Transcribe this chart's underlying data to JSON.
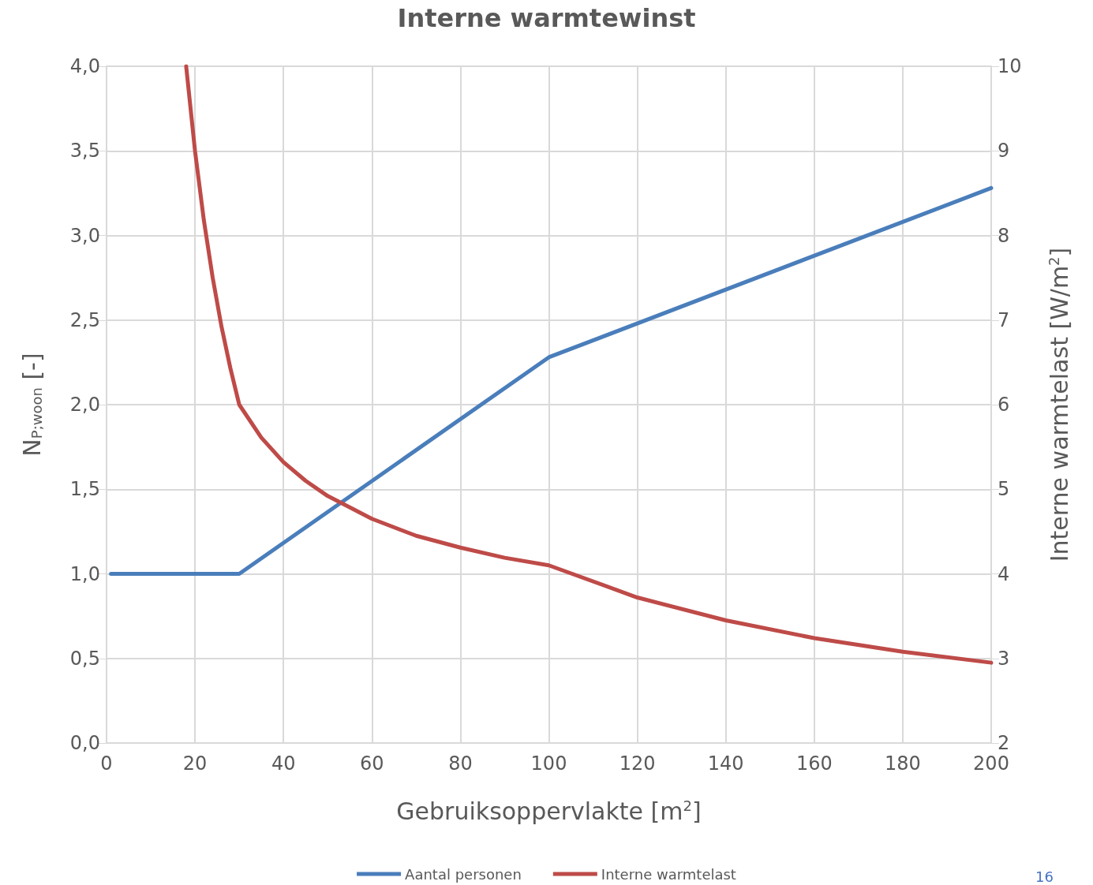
{
  "chart_data": {
    "type": "line",
    "title": "Interne warmtewinst",
    "xlabel": "Gebruiksoppervlakte [m$^{2}$]",
    "ylabel": "N$_{P;woon}$ [-]",
    "y2label": "Interne warmtelast [W/m$^{2}$]",
    "series": [
      {
        "name": "Aantal personen",
        "color": "#4a7ebb",
        "x": [
          1,
          30,
          100,
          200
        ],
        "values": [
          1,
          1,
          2.28,
          3.28
        ]
      },
      {
        "name": "Interne warmtelast",
        "color": "#be4b48",
        "axis": "y2",
        "x": [
          18,
          20,
          22,
          24,
          26,
          28,
          30,
          35,
          40,
          45,
          50,
          60,
          70,
          80,
          90,
          100,
          120,
          140,
          160,
          180,
          200
        ],
        "values": [
          10,
          9,
          8.18,
          7.5,
          6.92,
          6.43,
          6,
          5.61,
          5.32,
          5.1,
          4.92,
          4.65,
          4.45,
          4.31,
          4.19,
          4.1,
          3.72,
          3.45,
          3.24,
          3.08,
          2.95
        ]
      }
    ],
    "xlim": [
      0,
      200
    ],
    "xticks": [
      0,
      20,
      40,
      60,
      80,
      100,
      120,
      140,
      160,
      180,
      200
    ],
    "ylim": [
      0,
      4
    ],
    "yticks": [
      {
        "value": 0,
        "label": "0,0"
      },
      {
        "value": 0.5,
        "label": "0,5"
      },
      {
        "value": 1,
        "label": "1,0"
      },
      {
        "value": 1.5,
        "label": "1,5"
      },
      {
        "value": 2,
        "label": "2,0"
      },
      {
        "value": 2.5,
        "label": "2,5"
      },
      {
        "value": 3,
        "label": "3,0"
      },
      {
        "value": 3.5,
        "label": "3,5"
      },
      {
        "value": 4,
        "label": "4,0"
      }
    ],
    "y2lim": [
      2,
      10
    ],
    "y2ticks": [
      2,
      3,
      4,
      5,
      6,
      7,
      8,
      9,
      10
    ],
    "grid": true,
    "legend": "bottom",
    "marker": "none",
    "line_style": "solid",
    "annotations": [
      "16"
    ]
  }
}
